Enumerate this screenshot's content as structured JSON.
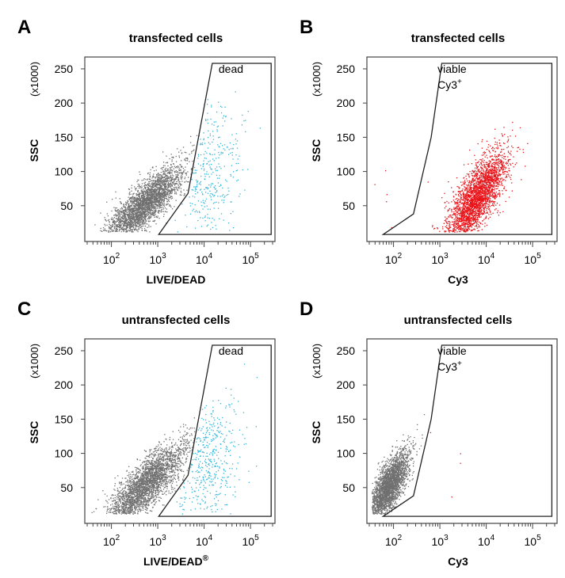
{
  "chart_data": [
    {
      "panel_letter": "A",
      "type": "scatter",
      "title": "transfected cells",
      "xlabel": "LIVE/DEAD",
      "ylabel": "SSC",
      "y_unit": "(x1000)",
      "x_scale": "log",
      "xlim": [
        30,
        300000
      ],
      "ylim": [
        0,
        265
      ],
      "x_ticks": [
        {
          "value": 100,
          "base": "10",
          "exp": "2"
        },
        {
          "value": 1000,
          "base": "10",
          "exp": "3"
        },
        {
          "value": 10000,
          "base": "10",
          "exp": "4"
        },
        {
          "value": 100000,
          "base": "10",
          "exp": "5"
        }
      ],
      "y_ticks": [
        {
          "value": 50,
          "label": "50"
        },
        {
          "value": 100,
          "label": "100"
        },
        {
          "value": 150,
          "label": "150"
        },
        {
          "value": 200,
          "label": "200"
        },
        {
          "value": 250,
          "label": "250"
        }
      ],
      "gate": {
        "label": "dead",
        "superscript": "",
        "polygon": [
          [
            1050,
            8
          ],
          [
            4500,
            68
          ],
          [
            15000,
            258
          ],
          [
            280000,
            258
          ],
          [
            280000,
            8
          ]
        ]
      },
      "series": [
        {
          "color": "#707070",
          "count": 2800,
          "center": [
            500,
            52
          ],
          "spread": [
            0.42,
            16
          ],
          "slope": 55,
          "gate": "outside"
        },
        {
          "color": "#33b5d8",
          "count": 330,
          "center": [
            13000,
            95
          ],
          "spread": [
            0.35,
            50
          ],
          "slope": 35,
          "gate": "inside"
        }
      ]
    },
    {
      "panel_letter": "B",
      "type": "scatter",
      "title": "transfected cells",
      "xlabel": "Cy3",
      "ylabel": "SSC",
      "y_unit": "(x1000)",
      "x_scale": "log",
      "xlim": [
        30,
        300000
      ],
      "ylim": [
        0,
        265
      ],
      "x_ticks": [
        {
          "value": 100,
          "base": "10",
          "exp": "2"
        },
        {
          "value": 1000,
          "base": "10",
          "exp": "3"
        },
        {
          "value": 10000,
          "base": "10",
          "exp": "4"
        },
        {
          "value": 100000,
          "base": "10",
          "exp": "5"
        }
      ],
      "y_ticks": [
        {
          "value": 50,
          "label": "50"
        },
        {
          "value": 100,
          "label": "100"
        },
        {
          "value": 150,
          "label": "150"
        },
        {
          "value": 200,
          "label": "200"
        },
        {
          "value": 250,
          "label": "250"
        }
      ],
      "gate": {
        "label": "viable",
        "label2": "Cy3",
        "superscript": "+",
        "polygon": [
          [
            60,
            8
          ],
          [
            270,
            38
          ],
          [
            650,
            150
          ],
          [
            1100,
            258
          ],
          [
            260000,
            258
          ],
          [
            260000,
            8
          ]
        ]
      },
      "series": [
        {
          "color": "#e8141a",
          "count": 2600,
          "center": [
            6000,
            62
          ],
          "spread": [
            0.33,
            22
          ],
          "slope": 75,
          "gate": "inside"
        },
        {
          "color": "#e8141a",
          "count": 6,
          "center": [
            150,
            60
          ],
          "spread": [
            0.3,
            25
          ],
          "slope": 0,
          "gate": "any"
        }
      ]
    },
    {
      "panel_letter": "C",
      "type": "scatter",
      "title": "untransfected cells",
      "xlabel": "LIVE/DEAD",
      "xlabel_sup": "®",
      "ylabel": "SSC",
      "y_unit": "(x1000)",
      "x_scale": "log",
      "xlim": [
        30,
        300000
      ],
      "ylim": [
        0,
        265
      ],
      "x_ticks": [
        {
          "value": 100,
          "base": "10",
          "exp": "2"
        },
        {
          "value": 1000,
          "base": "10",
          "exp": "3"
        },
        {
          "value": 10000,
          "base": "10",
          "exp": "4"
        },
        {
          "value": 100000,
          "base": "10",
          "exp": "5"
        }
      ],
      "y_ticks": [
        {
          "value": 50,
          "label": "50"
        },
        {
          "value": 100,
          "label": "100"
        },
        {
          "value": 150,
          "label": "150"
        },
        {
          "value": 200,
          "label": "200"
        },
        {
          "value": 250,
          "label": "250"
        }
      ],
      "gate": {
        "label": "dead",
        "superscript": "",
        "polygon": [
          [
            1050,
            8
          ],
          [
            4500,
            68
          ],
          [
            15000,
            258
          ],
          [
            280000,
            258
          ],
          [
            280000,
            8
          ]
        ]
      },
      "series": [
        {
          "color": "#707070",
          "count": 2700,
          "center": [
            550,
            55
          ],
          "spread": [
            0.42,
            18
          ],
          "slope": 60,
          "gate": "outside"
        },
        {
          "color": "#33b5d8",
          "count": 420,
          "center": [
            12000,
            85
          ],
          "spread": [
            0.36,
            45
          ],
          "slope": 35,
          "gate": "inside"
        }
      ]
    },
    {
      "panel_letter": "D",
      "type": "scatter",
      "title": "untransfected cells",
      "xlabel": "Cy3",
      "ylabel": "SSC",
      "y_unit": "(x1000)",
      "x_scale": "log",
      "xlim": [
        30,
        300000
      ],
      "ylim": [
        0,
        265
      ],
      "x_ticks": [
        {
          "value": 100,
          "base": "10",
          "exp": "2"
        },
        {
          "value": 1000,
          "base": "10",
          "exp": "3"
        },
        {
          "value": 10000,
          "base": "10",
          "exp": "4"
        },
        {
          "value": 100000,
          "base": "10",
          "exp": "5"
        }
      ],
      "y_ticks": [
        {
          "value": 50,
          "label": "50"
        },
        {
          "value": 100,
          "label": "100"
        },
        {
          "value": 150,
          "label": "150"
        },
        {
          "value": 200,
          "label": "200"
        },
        {
          "value": 250,
          "label": "250"
        }
      ],
      "gate": {
        "label": "viable",
        "label2": "Cy3",
        "superscript": "+",
        "polygon": [
          [
            60,
            8
          ],
          [
            270,
            38
          ],
          [
            650,
            150
          ],
          [
            1100,
            258
          ],
          [
            260000,
            258
          ],
          [
            260000,
            8
          ]
        ]
      },
      "series": [
        {
          "color": "#707070",
          "count": 2600,
          "center": [
            75,
            50
          ],
          "spread": [
            0.22,
            18
          ],
          "slope": 90,
          "gate": "outside"
        },
        {
          "color": "#e8141a",
          "count": 4,
          "center": [
            1500,
            90
          ],
          "spread": [
            0.25,
            20
          ],
          "slope": 0,
          "gate": "inside"
        }
      ]
    }
  ]
}
